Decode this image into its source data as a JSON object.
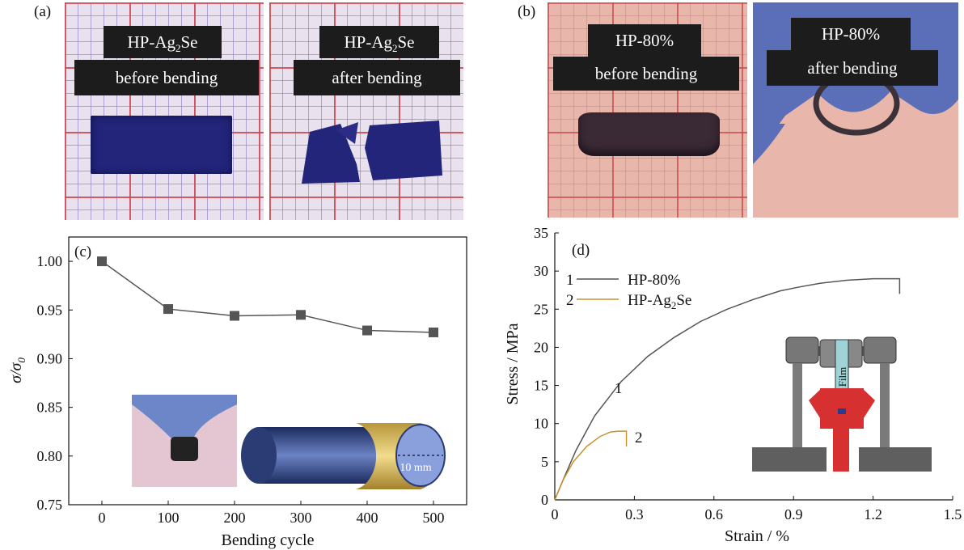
{
  "panels": {
    "a": {
      "letter": "(a)",
      "left_photo": {
        "line1_base": "HP-Ag",
        "line1_sub": "2",
        "line1_tail": "Se",
        "line2": "before bending"
      },
      "right_photo": {
        "line1_base": "HP-Ag",
        "line1_sub": "2",
        "line1_tail": "Se",
        "line2": "after bending"
      }
    },
    "b": {
      "letter": "(b)",
      "left_photo": {
        "line1": "HP-80%",
        "line2": "before bending"
      },
      "right_photo": {
        "line1": "HP-80%",
        "line2": "after bending"
      }
    }
  },
  "chart_data": [
    {
      "panel": "(c)",
      "type": "line",
      "xlabel": "Bending cycle",
      "ylabel_base": "σ/σ",
      "ylabel_sub": "0",
      "x": [
        0,
        100,
        200,
        300,
        400,
        500
      ],
      "y": [
        1.0,
        0.951,
        0.944,
        0.945,
        0.929,
        0.927
      ],
      "xlim": [
        -50,
        550
      ],
      "ylim": [
        0.75,
        1.025
      ],
      "xticks": [
        "0",
        "100",
        "200",
        "300",
        "400",
        "500"
      ],
      "yticks": [
        "0.75",
        "0.80",
        "0.85",
        "0.90",
        "0.95",
        "1.00"
      ],
      "marker": "square",
      "color": "#555555",
      "inset_label": "10 mm"
    },
    {
      "panel": "(d)",
      "type": "line",
      "xlabel": "Strain / %",
      "ylabel": "Stress / MPa",
      "xlim": [
        0,
        1.5
      ],
      "ylim": [
        0,
        35
      ],
      "xticks": [
        "0",
        "0.3",
        "0.6",
        "0.9",
        "1.2",
        "1.5"
      ],
      "yticks": [
        "0",
        "5",
        "10",
        "15",
        "20",
        "25",
        "30",
        "35"
      ],
      "series": [
        {
          "name": "HP-80%",
          "index_label": "1",
          "color": "#555555",
          "x": [
            0.0,
            0.03,
            0.08,
            0.15,
            0.25,
            0.35,
            0.45,
            0.55,
            0.65,
            0.75,
            0.85,
            0.92,
            1.0,
            1.1,
            1.2,
            1.3
          ],
          "y": [
            0.0,
            2.5,
            6.5,
            11.0,
            15.5,
            18.8,
            21.3,
            23.4,
            25.0,
            26.3,
            27.4,
            27.9,
            28.4,
            28.8,
            29.0,
            29.0
          ],
          "end_drop": 27.0
        },
        {
          "name_base": "HP-Ag",
          "name_sub": "2",
          "name_tail": "Se",
          "index_label": "2",
          "color": "#c8922e",
          "x": [
            0.0,
            0.03,
            0.07,
            0.12,
            0.17,
            0.21,
            0.24,
            0.27
          ],
          "y": [
            0.0,
            2.5,
            5.0,
            7.0,
            8.3,
            8.9,
            9.0,
            9.0
          ],
          "end_drop": 7.0
        }
      ],
      "curve_labels": [
        "1",
        "2"
      ],
      "inset_label": "Film"
    }
  ]
}
